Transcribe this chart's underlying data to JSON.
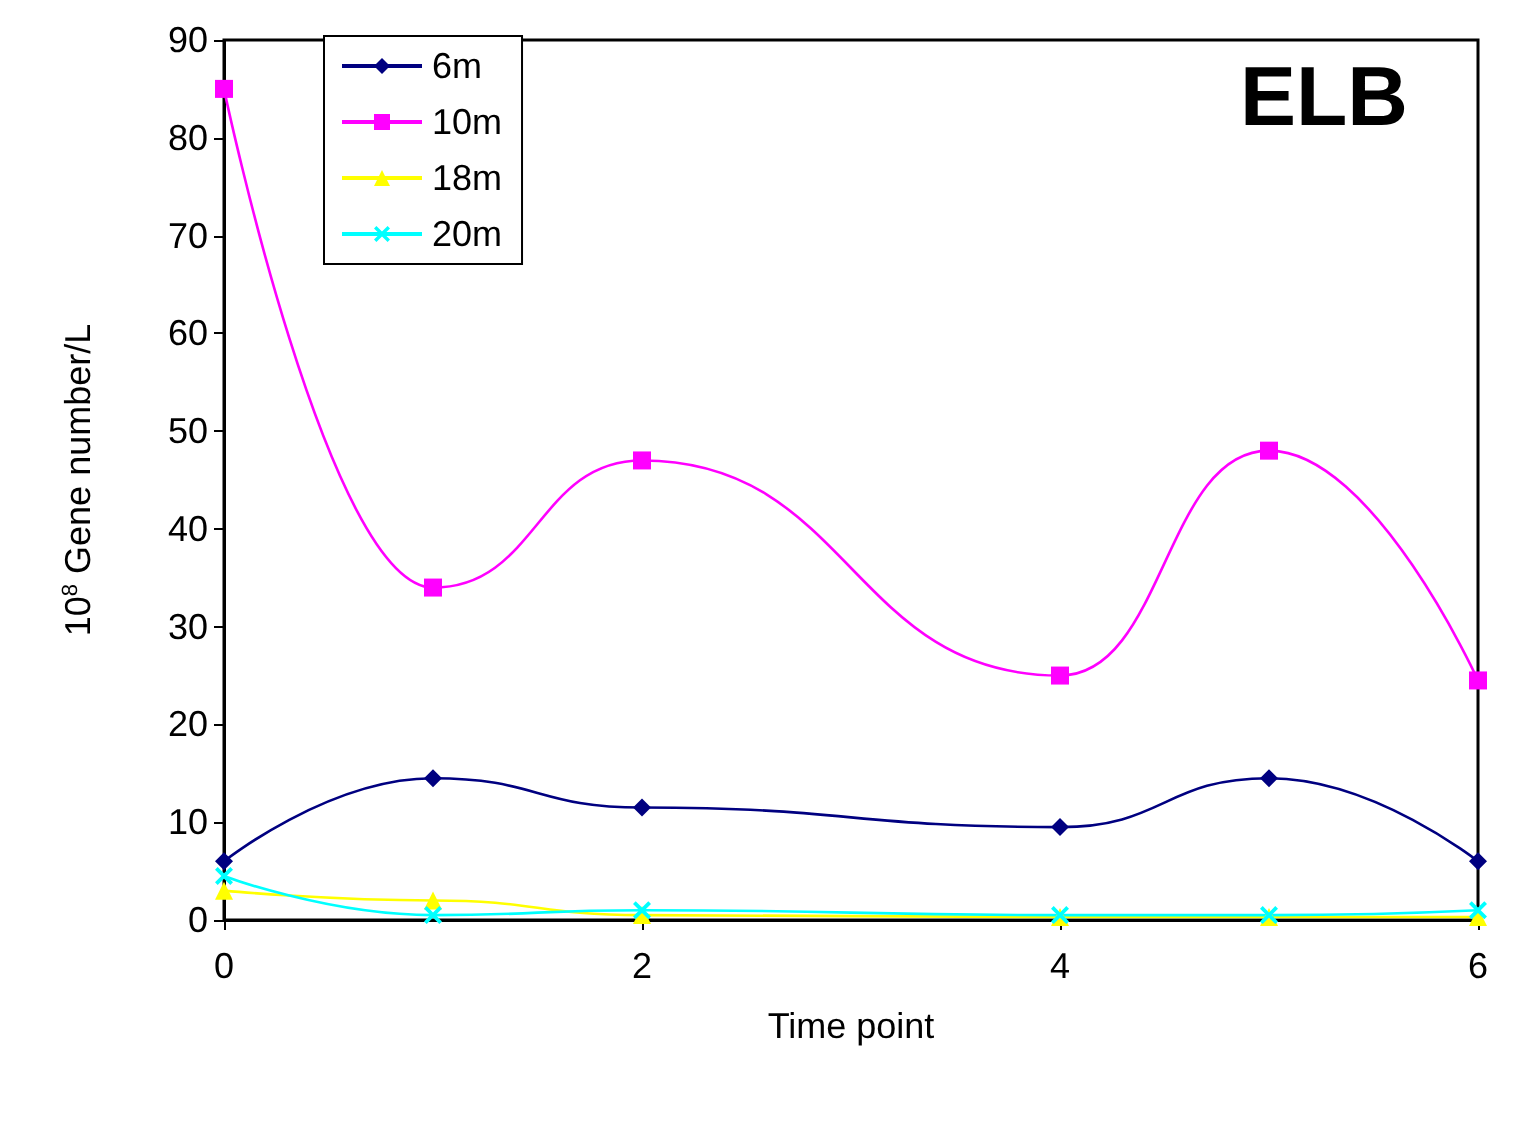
{
  "chart_data": {
    "type": "line",
    "title": "ELB",
    "xlabel": "Time point",
    "ylabel": "10$^{8}$ Gene number/L",
    "x": [
      0,
      1,
      2,
      4,
      5,
      6
    ],
    "series": [
      {
        "name": "6m",
        "color": "#000080",
        "marker": "diamond",
        "values": [
          6,
          14.5,
          11.5,
          9.5,
          14.5,
          6
        ]
      },
      {
        "name": "10m",
        "color": "#ff00ff",
        "marker": "square",
        "values": [
          85,
          34,
          47,
          25,
          48,
          24.5
        ]
      },
      {
        "name": "18m",
        "color": "#ffff00",
        "marker": "triangle",
        "values": [
          3,
          2,
          0.5,
          0.3,
          0.3,
          0.3
        ]
      },
      {
        "name": "20m",
        "color": "#00ffff",
        "marker": "cross",
        "values": [
          4.5,
          0.5,
          1,
          0.5,
          0.5,
          1
        ]
      }
    ],
    "xlim": [
      0,
      6
    ],
    "xticks": [
      0,
      2,
      4,
      6
    ],
    "ylim": [
      0,
      90
    ],
    "yticks": [
      0,
      10,
      20,
      30,
      40,
      50,
      60,
      70,
      80,
      90
    ],
    "grid": false,
    "legend": "top left"
  }
}
